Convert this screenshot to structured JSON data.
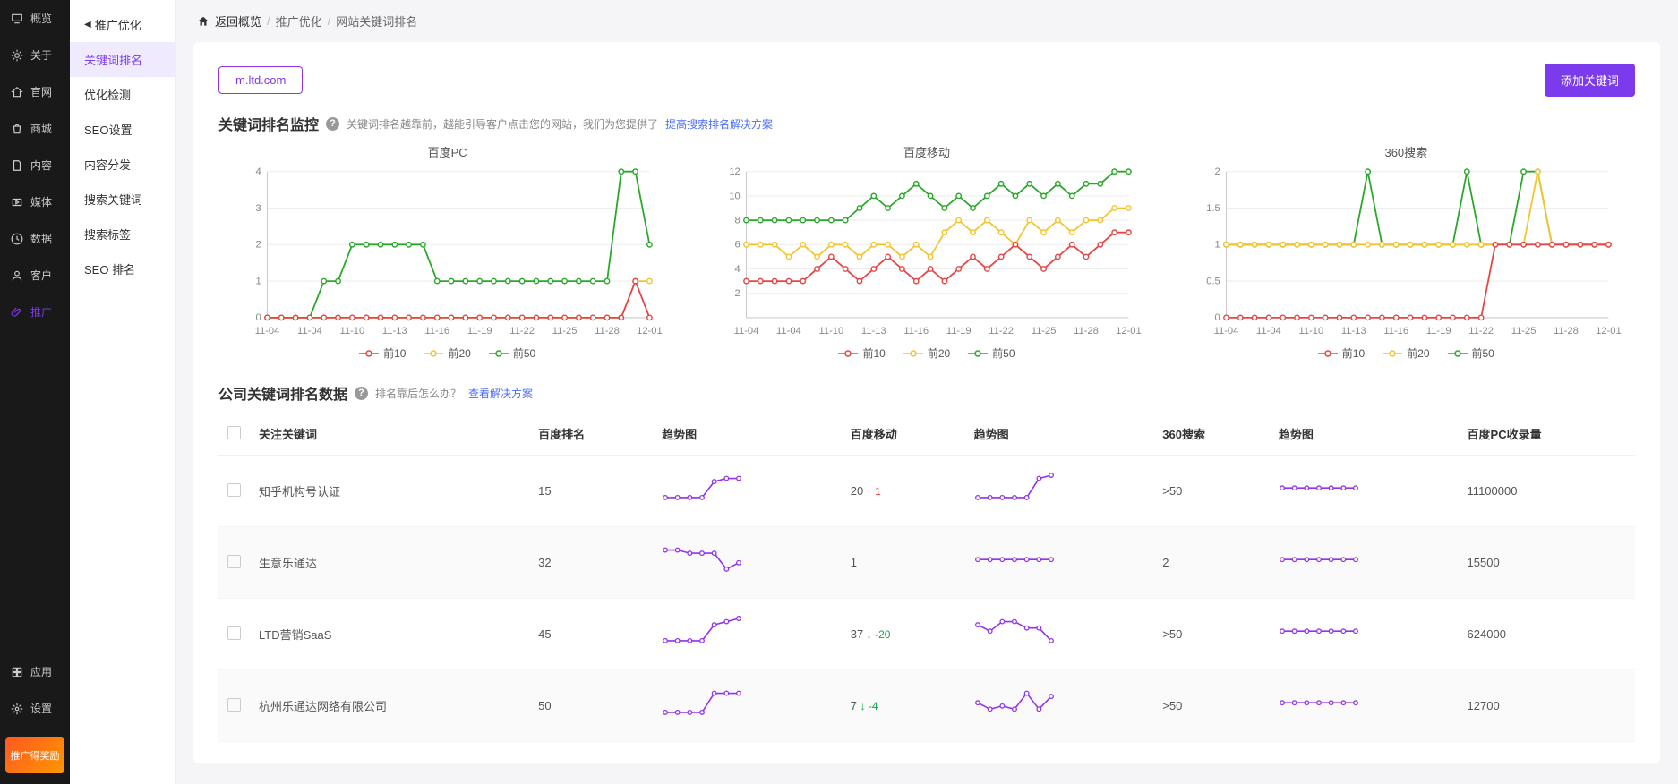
{
  "sidebar_main": {
    "items": [
      {
        "label": "概览",
        "icon": "monitor"
      },
      {
        "label": "关于",
        "icon": "gear"
      },
      {
        "label": "官网",
        "icon": "home"
      },
      {
        "label": "商城",
        "icon": "bag"
      },
      {
        "label": "内容",
        "icon": "doc"
      },
      {
        "label": "媒体",
        "icon": "video"
      },
      {
        "label": "数据",
        "icon": "clock"
      },
      {
        "label": "客户",
        "icon": "person"
      },
      {
        "label": "推广",
        "icon": "clip",
        "active": true
      }
    ],
    "bottom": [
      {
        "label": "应用",
        "icon": "grid"
      },
      {
        "label": "设置",
        "icon": "cog"
      }
    ],
    "promo_label": "推广得奖励"
  },
  "sidebar_sub": {
    "title": "推广优化",
    "items": [
      {
        "label": "关键词排名",
        "active": true
      },
      {
        "label": "优化检测"
      },
      {
        "label": "SEO设置"
      },
      {
        "label": "内容分发"
      },
      {
        "label": "搜索关键词"
      },
      {
        "label": "搜索标签"
      },
      {
        "label": "SEO 排名"
      }
    ]
  },
  "breadcrumb": {
    "back": "返回概览",
    "items": [
      "推广优化",
      "网站关键词排名"
    ]
  },
  "toolbar": {
    "domain": "m.ltd.com",
    "add_btn": "添加关键词"
  },
  "monitor": {
    "title": "关键词排名监控",
    "desc_a": "关键词排名越靠前，越能引导客户点击您的网站，我们为您提供了",
    "link": "提高搜索排名解决方案"
  },
  "legend": {
    "a": "前10",
    "b": "前20",
    "c": "前50"
  },
  "chart_common": {
    "x_labels": [
      "11-04",
      "11-04",
      "11-10",
      "11-13",
      "11-16",
      "11-19",
      "11-22",
      "11-25",
      "11-28",
      "12-01"
    ],
    "colors": {
      "s10": "#e64545",
      "s20": "#f4c430",
      "s50": "#2ba82b"
    },
    "legend_colors": {
      "s10": "#e64545",
      "s20": "#f4c430",
      "s50": "#2ba82b"
    }
  },
  "charts": [
    {
      "title": "百度PC",
      "y_max": 4,
      "y_ticks": [
        0,
        1,
        2,
        3,
        4
      ],
      "s10": [
        0,
        0,
        0,
        0,
        0,
        0,
        0,
        0,
        0,
        0,
        0,
        0,
        0,
        0,
        0,
        0,
        0,
        0,
        0,
        0,
        0,
        0,
        0,
        0,
        0,
        0,
        1,
        0
      ],
      "s20": [
        0,
        0,
        0,
        0,
        0,
        0,
        0,
        0,
        0,
        0,
        0,
        0,
        0,
        0,
        0,
        0,
        0,
        0,
        0,
        0,
        0,
        0,
        0,
        0,
        0,
        0,
        1,
        1
      ],
      "s50": [
        0,
        0,
        0,
        0,
        1,
        1,
        2,
        2,
        2,
        2,
        2,
        2,
        1,
        1,
        1,
        1,
        1,
        1,
        1,
        1,
        1,
        1,
        1,
        1,
        1,
        4,
        4,
        2
      ]
    },
    {
      "title": "百度移动",
      "y_max": 12,
      "y_ticks": [
        2,
        4,
        6,
        8,
        10,
        12
      ],
      "s10": [
        3,
        3,
        3,
        3,
        3,
        4,
        5,
        4,
        3,
        4,
        5,
        4,
        3,
        4,
        3,
        4,
        5,
        4,
        5,
        6,
        5,
        4,
        5,
        6,
        5,
        6,
        7,
        7
      ],
      "s20": [
        6,
        6,
        6,
        5,
        6,
        5,
        6,
        6,
        5,
        6,
        6,
        5,
        6,
        5,
        7,
        8,
        7,
        8,
        7,
        6,
        8,
        7,
        8,
        7,
        8,
        8,
        9,
        9
      ],
      "s50": [
        8,
        8,
        8,
        8,
        8,
        8,
        8,
        8,
        9,
        10,
        9,
        10,
        11,
        10,
        9,
        10,
        9,
        10,
        11,
        10,
        11,
        10,
        11,
        10,
        11,
        11,
        12,
        12
      ]
    },
    {
      "title": "360搜索",
      "y_max": 2,
      "y_ticks": [
        0,
        0.5,
        1,
        1.5,
        2
      ],
      "s10": [
        0,
        0,
        0,
        0,
        0,
        0,
        0,
        0,
        0,
        0,
        0,
        0,
        0,
        0,
        0,
        0,
        0,
        0,
        0,
        1,
        1,
        1,
        1,
        1,
        1,
        1,
        1,
        1
      ],
      "s20": [
        1,
        1,
        1,
        1,
        1,
        1,
        1,
        1,
        1,
        1,
        1,
        1,
        1,
        1,
        1,
        1,
        1,
        1,
        1,
        1,
        1,
        1,
        2,
        1,
        1,
        1,
        1,
        1
      ],
      "s50": [
        1,
        1,
        1,
        1,
        1,
        1,
        1,
        1,
        1,
        1,
        2,
        1,
        1,
        1,
        1,
        1,
        1,
        2,
        1,
        1,
        1,
        2,
        2,
        1,
        1,
        1,
        1,
        1
      ]
    }
  ],
  "rank_data": {
    "title": "公司关键词排名数据",
    "hint": "排名靠后怎么办？",
    "hint_link": "查看解决方案",
    "columns": [
      "关注关键词",
      "百度排名",
      "趋势图",
      "百度移动",
      "趋势图",
      "360搜索",
      "趋势图",
      "百度PC收录量"
    ],
    "rows": [
      {
        "kw": "知乎机构号认证",
        "baidu_pc": "15",
        "spark1": [
          2,
          2,
          2,
          2,
          7,
          8,
          8
        ],
        "baidu_m": "20",
        "m_trend": {
          "dir": "up",
          "val": "1"
        },
        "spark2": [
          2,
          2,
          2,
          2,
          2,
          8,
          9
        ],
        "s360": ">50",
        "spark3": [
          5,
          5,
          5,
          5,
          5,
          5,
          5
        ],
        "pc_inc": "11100000"
      },
      {
        "kw": "生意乐通达",
        "baidu_pc": "32",
        "spark1": [
          8,
          8,
          7,
          7,
          7,
          2,
          4
        ],
        "baidu_m": "1",
        "m_trend": null,
        "spark2": [
          5,
          5,
          5,
          5,
          5,
          5,
          5
        ],
        "s360": "2",
        "spark3": [
          5,
          5,
          5,
          5,
          5,
          5,
          5
        ],
        "pc_inc": "15500"
      },
      {
        "kw": "LTD营销SaaS",
        "baidu_pc": "45",
        "spark1": [
          2,
          2,
          2,
          2,
          7,
          8,
          9
        ],
        "baidu_m": "37",
        "m_trend": {
          "dir": "down",
          "val": "-20"
        },
        "spark2": [
          7,
          5,
          8,
          8,
          6,
          6,
          2
        ],
        "s360": ">50",
        "spark3": [
          5,
          5,
          5,
          5,
          5,
          5,
          5
        ],
        "pc_inc": "624000"
      },
      {
        "kw": "杭州乐通达网络有限公司",
        "baidu_pc": "50",
        "spark1": [
          2,
          2,
          2,
          2,
          8,
          8,
          8
        ],
        "baidu_m": "7",
        "m_trend": {
          "dir": "down",
          "val": "-4"
        },
        "spark2": [
          5,
          3,
          4,
          3,
          8,
          3,
          7
        ],
        "s360": ">50",
        "spark3": [
          5,
          5,
          5,
          5,
          5,
          5,
          5
        ],
        "pc_inc": "12700"
      }
    ]
  }
}
